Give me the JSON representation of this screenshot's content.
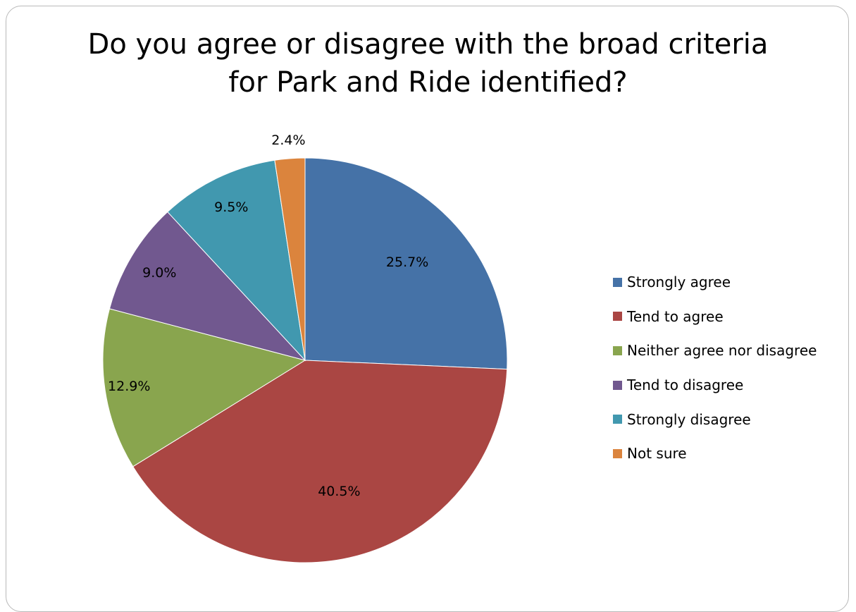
{
  "chart_data": {
    "type": "pie",
    "title": "Do you agree or disagree with the broad criteria for Park and Ride identified?",
    "title_lines": [
      "Do you agree or disagree with the broad criteria",
      "for Park and Ride identified?"
    ],
    "legend_position": "right",
    "start_angle_deg": 0,
    "direction": "clockwise",
    "slices": [
      {
        "label": "Strongly agree",
        "value": 25.7,
        "display": "25.7%",
        "color": "#4572a7"
      },
      {
        "label": "Tend to agree",
        "value": 40.5,
        "display": "40.5%",
        "color": "#aa4643"
      },
      {
        "label": "Neither agree nor disagree",
        "value": 12.9,
        "display": "12.9%",
        "color": "#89a54e"
      },
      {
        "label": "Tend to disagree",
        "value": 9.0,
        "display": "9.0%",
        "color": "#71588f"
      },
      {
        "label": "Strongly disagree",
        "value": 9.5,
        "display": "9.5%",
        "color": "#4198af"
      },
      {
        "label": "Not sure",
        "value": 2.4,
        "display": "2.4%",
        "color": "#db843d"
      }
    ]
  }
}
